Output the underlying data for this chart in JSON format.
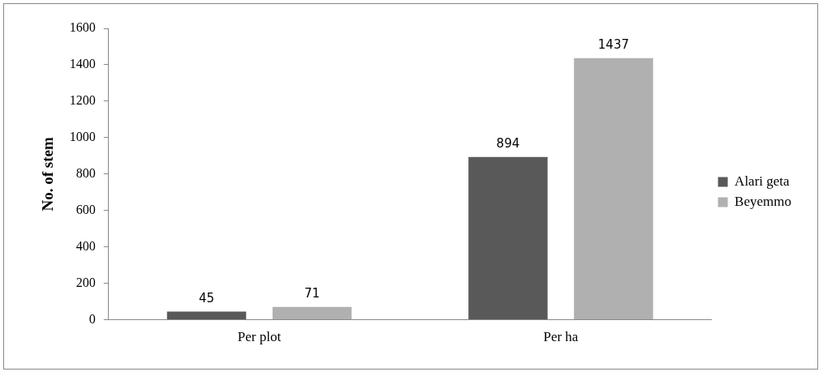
{
  "chart_data": {
    "type": "bar",
    "ylabel": "No. of stem",
    "categories": [
      "Per plot",
      "Per ha"
    ],
    "series": [
      {
        "name": "Alari geta",
        "color": "#595959",
        "values": [
          45,
          894
        ]
      },
      {
        "name": "Beyemmo",
        "color": "#b0b0b0",
        "values": [
          71,
          1437
        ]
      }
    ],
    "ylim": [
      0,
      1600
    ],
    "yticks": [
      0,
      200,
      400,
      600,
      800,
      1000,
      1200,
      1400,
      1600
    ],
    "grid": false,
    "legend": "right",
    "data_labels": true
  }
}
